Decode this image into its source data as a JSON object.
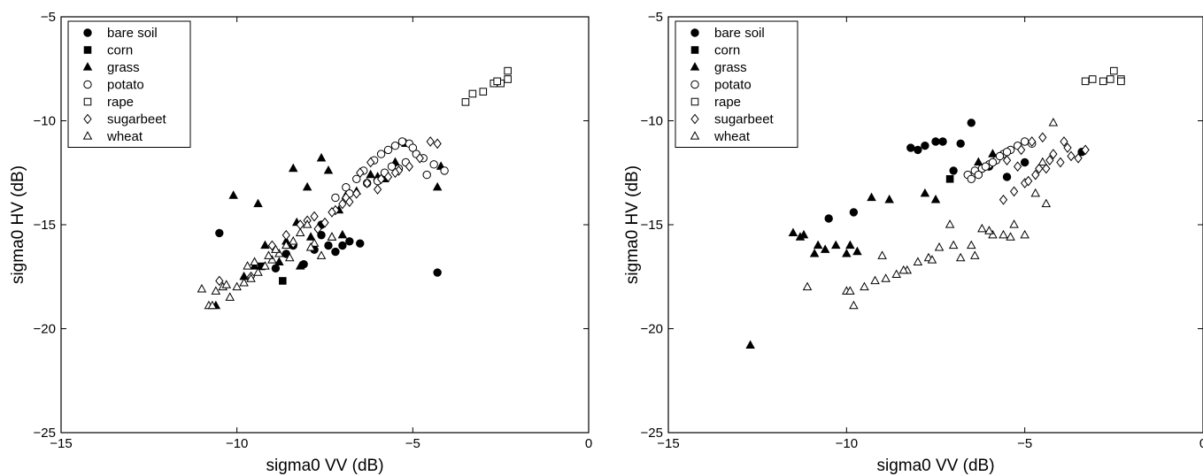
{
  "chart_data": [
    {
      "type": "scatter",
      "xlabel": "sigma0 VV (dB)",
      "ylabel": "sigma0 HV (dB)",
      "xlim": [
        -15,
        0
      ],
      "ylim": [
        -25,
        -5
      ],
      "xticks": [
        -15,
        -10,
        -5,
        0
      ],
      "yticks": [
        -25,
        -20,
        -15,
        -10,
        -5
      ],
      "xtick_labels": [
        "−15",
        "−10",
        "−5",
        "0"
      ],
      "ytick_labels": [
        "−25",
        "−20",
        "−15",
        "−10",
        "−5"
      ],
      "grid": false,
      "legend_position": "top-left",
      "series": [
        {
          "name": "bare soil",
          "marker": "filled-circle",
          "x": [
            -10.5,
            -8.9,
            -8.6,
            -8.1,
            -7.8,
            -7.6,
            -7.4,
            -7.2,
            -7.0,
            -6.8,
            -6.5,
            -4.3,
            -7.6,
            -8.4
          ],
          "y": [
            -15.4,
            -17.1,
            -16.4,
            -16.9,
            -16.2,
            -15.5,
            -16.0,
            -16.3,
            -16.0,
            -15.8,
            -15.9,
            -17.3,
            -15.0,
            -16.0
          ]
        },
        {
          "name": "corn",
          "marker": "filled-square",
          "x": [
            -8.7,
            -9.3
          ],
          "y": [
            -17.7,
            -17.0
          ]
        },
        {
          "name": "grass",
          "marker": "filled-triangle",
          "x": [
            -10.1,
            -10.6,
            -9.2,
            -8.6,
            -8.3,
            -8.0,
            -7.6,
            -7.4,
            -7.1,
            -6.9,
            -5.5,
            -5.2,
            -4.3,
            -4.2,
            -9.5,
            -8.8,
            -7.9,
            -7.3,
            -6.6,
            -6.2,
            -5.8,
            -8.2,
            -7.0,
            -9.8,
            -9.4,
            -8.4,
            -6.0
          ],
          "y": [
            -13.6,
            -18.9,
            -16.0,
            -15.8,
            -14.9,
            -13.2,
            -11.8,
            -12.4,
            -14.3,
            -13.6,
            -12.0,
            -11.1,
            -13.2,
            -12.2,
            -17.0,
            -16.8,
            -15.6,
            -15.6,
            -13.4,
            -12.6,
            -12.8,
            -17.0,
            -15.5,
            -17.5,
            -14.0,
            -12.3,
            -12.7
          ]
        },
        {
          "name": "potato",
          "marker": "open-circle",
          "x": [
            -7.2,
            -6.9,
            -6.6,
            -6.4,
            -6.1,
            -5.9,
            -5.7,
            -5.5,
            -5.3,
            -5.1,
            -5.0,
            -4.7,
            -4.4,
            -4.1,
            -6.8,
            -6.3,
            -5.8,
            -5.4,
            -5.2,
            -4.9,
            -6.0,
            -5.6,
            -4.6
          ],
          "y": [
            -13.7,
            -13.2,
            -12.8,
            -12.4,
            -11.9,
            -11.6,
            -11.4,
            -11.2,
            -11.0,
            -11.1,
            -11.3,
            -11.8,
            -12.1,
            -12.4,
            -13.5,
            -13.0,
            -12.5,
            -12.3,
            -12.0,
            -11.6,
            -12.9,
            -12.2,
            -12.6
          ]
        },
        {
          "name": "rape",
          "marker": "open-square",
          "x": [
            -3.5,
            -3.3,
            -3.0,
            -2.7,
            -2.5,
            -2.3,
            -2.3,
            -2.6
          ],
          "y": [
            -9.1,
            -8.7,
            -8.6,
            -8.2,
            -8.2,
            -7.6,
            -8.0,
            -8.1
          ]
        },
        {
          "name": "sugarbeet",
          "marker": "open-diamond",
          "x": [
            -9.0,
            -8.6,
            -8.2,
            -7.8,
            -7.5,
            -7.2,
            -6.9,
            -6.6,
            -6.3,
            -6.0,
            -5.7,
            -5.4,
            -5.1,
            -4.8,
            -4.5,
            -4.3,
            -7.0,
            -6.5,
            -6.2,
            -5.9,
            -8.4,
            -7.7,
            -5.5,
            -6.8,
            -8.0,
            -7.3
          ],
          "y": [
            -16.0,
            -15.5,
            -15.0,
            -14.6,
            -14.9,
            -14.3,
            -13.7,
            -13.5,
            -13.0,
            -13.3,
            -12.7,
            -12.4,
            -12.2,
            -11.8,
            -11.0,
            -11.1,
            -14.0,
            -12.5,
            -12.0,
            -12.8,
            -15.9,
            -15.2,
            -12.5,
            -13.9,
            -14.8,
            -14.4
          ],
          "extra_x": [
            -10.5,
            -9.6
          ],
          "extra_y": [
            -17.7,
            -17.5
          ]
        },
        {
          "name": "wheat",
          "marker": "open-triangle",
          "x": [
            -11.0,
            -10.8,
            -10.6,
            -10.4,
            -10.2,
            -10.0,
            -9.8,
            -9.6,
            -9.4,
            -9.2,
            -9.0,
            -8.8,
            -8.6,
            -8.4,
            -8.2,
            -8.0,
            -7.8,
            -7.6,
            -10.7,
            -10.3,
            -9.7,
            -9.1,
            -8.5,
            -7.9,
            -7.3,
            -9.5,
            -8.9
          ],
          "y": [
            -18.1,
            -18.9,
            -18.2,
            -18.0,
            -18.5,
            -18.0,
            -17.8,
            -17.6,
            -17.3,
            -17.0,
            -16.7,
            -16.4,
            -16.0,
            -15.8,
            -15.4,
            -15.0,
            -15.9,
            -16.5,
            -18.9,
            -17.9,
            -17.0,
            -16.5,
            -16.6,
            -16.1,
            -15.6,
            -16.8,
            -16.2
          ]
        }
      ]
    },
    {
      "type": "scatter",
      "xlabel": "sigma0 VV (dB)",
      "ylabel": "sigma0 HV (dB)",
      "xlim": [
        -15,
        0
      ],
      "ylim": [
        -25,
        -5
      ],
      "xticks": [
        -15,
        -10,
        -5,
        0
      ],
      "yticks": [
        -25,
        -20,
        -15,
        -10,
        -5
      ],
      "xtick_labels": [
        "−15",
        "−10",
        "−5",
        "0"
      ],
      "ytick_labels": [
        "−25",
        "−20",
        "−15",
        "−10",
        "−5"
      ],
      "grid": false,
      "legend_position": "top-left",
      "series": [
        {
          "name": "bare soil",
          "marker": "filled-circle",
          "x": [
            -8.2,
            -8.0,
            -7.8,
            -7.5,
            -7.3,
            -7.0,
            -6.8,
            -6.5,
            -10.5,
            -9.8,
            -5.0,
            -3.4,
            -6.0,
            -5.5
          ],
          "y": [
            -11.3,
            -11.4,
            -11.2,
            -11.0,
            -11.0,
            -12.4,
            -11.1,
            -10.1,
            -14.7,
            -14.4,
            -12.0,
            -11.5,
            -12.2,
            -12.7
          ]
        },
        {
          "name": "corn",
          "marker": "filled-square",
          "x": [
            -7.1
          ],
          "y": [
            -12.8
          ]
        },
        {
          "name": "grass",
          "marker": "filled-triangle",
          "x": [
            -11.5,
            -11.2,
            -10.9,
            -10.6,
            -10.3,
            -10.0,
            -9.7,
            -9.3,
            -8.8,
            -7.8,
            -7.5,
            -11.3,
            -10.8,
            -9.9,
            -12.7,
            -6.3,
            -5.9
          ],
          "y": [
            -15.4,
            -15.5,
            -16.4,
            -16.2,
            -16.0,
            -16.4,
            -16.3,
            -13.7,
            -13.8,
            -13.5,
            -13.8,
            -15.6,
            -16.0,
            -16.0,
            -20.8,
            -12.0,
            -11.6
          ]
        },
        {
          "name": "potato",
          "marker": "open-circle",
          "x": [
            -6.6,
            -6.4,
            -6.2,
            -6.0,
            -5.8,
            -5.6,
            -5.4,
            -5.2,
            -5.0,
            -4.8,
            -6.5,
            -6.3,
            -6.1,
            -5.9,
            -5.7,
            -5.5
          ],
          "y": [
            -12.6,
            -12.4,
            -12.3,
            -12.1,
            -11.9,
            -11.6,
            -11.4,
            -11.2,
            -11.0,
            -11.1,
            -12.8,
            -12.6,
            -12.2,
            -12.0,
            -11.7,
            -11.5
          ]
        },
        {
          "name": "rape",
          "marker": "open-square",
          "x": [
            -3.3,
            -3.1,
            -2.8,
            -2.6,
            -2.5,
            -2.3,
            -2.3
          ],
          "y": [
            -8.1,
            -8.0,
            -8.1,
            -8.0,
            -7.6,
            -8.0,
            -8.1
          ]
        },
        {
          "name": "sugarbeet",
          "marker": "open-diamond",
          "x": [
            -5.6,
            -5.3,
            -5.0,
            -4.7,
            -4.4,
            -4.0,
            -3.7,
            -3.3,
            -5.5,
            -5.1,
            -4.8,
            -4.5,
            -4.2,
            -3.8,
            -3.5,
            -4.9,
            -4.6,
            -4.3,
            -3.9,
            -5.2
          ],
          "y": [
            -13.8,
            -13.4,
            -13.0,
            -12.6,
            -12.3,
            -12.0,
            -11.7,
            -11.4,
            -11.9,
            -11.4,
            -11.0,
            -10.8,
            -11.6,
            -11.3,
            -11.8,
            -12.9,
            -12.3,
            -11.9,
            -11.0,
            -12.2
          ]
        },
        {
          "name": "wheat",
          "marker": "open-triangle",
          "x": [
            -11.1,
            -10.0,
            -9.8,
            -9.5,
            -9.2,
            -8.9,
            -8.6,
            -8.3,
            -8.0,
            -7.7,
            -7.4,
            -7.1,
            -6.8,
            -6.5,
            -6.2,
            -5.9,
            -5.6,
            -5.3,
            -5.0,
            -4.7,
            -4.4,
            -4.2,
            -4.5,
            -6.4,
            -6.0,
            -9.9,
            -9.0,
            -8.4,
            -7.6,
            -7.0,
            -5.4
          ],
          "y": [
            -18.0,
            -18.2,
            -18.9,
            -18.0,
            -17.7,
            -17.6,
            -17.4,
            -17.2,
            -16.8,
            -16.6,
            -16.1,
            -15.0,
            -16.6,
            -16.0,
            -15.2,
            -15.5,
            -15.5,
            -15.0,
            -15.5,
            -13.5,
            -14.0,
            -10.1,
            -12.0,
            -16.5,
            -15.3,
            -18.2,
            -16.5,
            -17.2,
            -16.7,
            -16.0,
            -15.6
          ]
        }
      ]
    }
  ],
  "legend": {
    "entries": [
      "bare soil",
      "corn",
      "grass",
      "potato",
      "rape",
      "sugarbeet",
      "wheat"
    ]
  }
}
